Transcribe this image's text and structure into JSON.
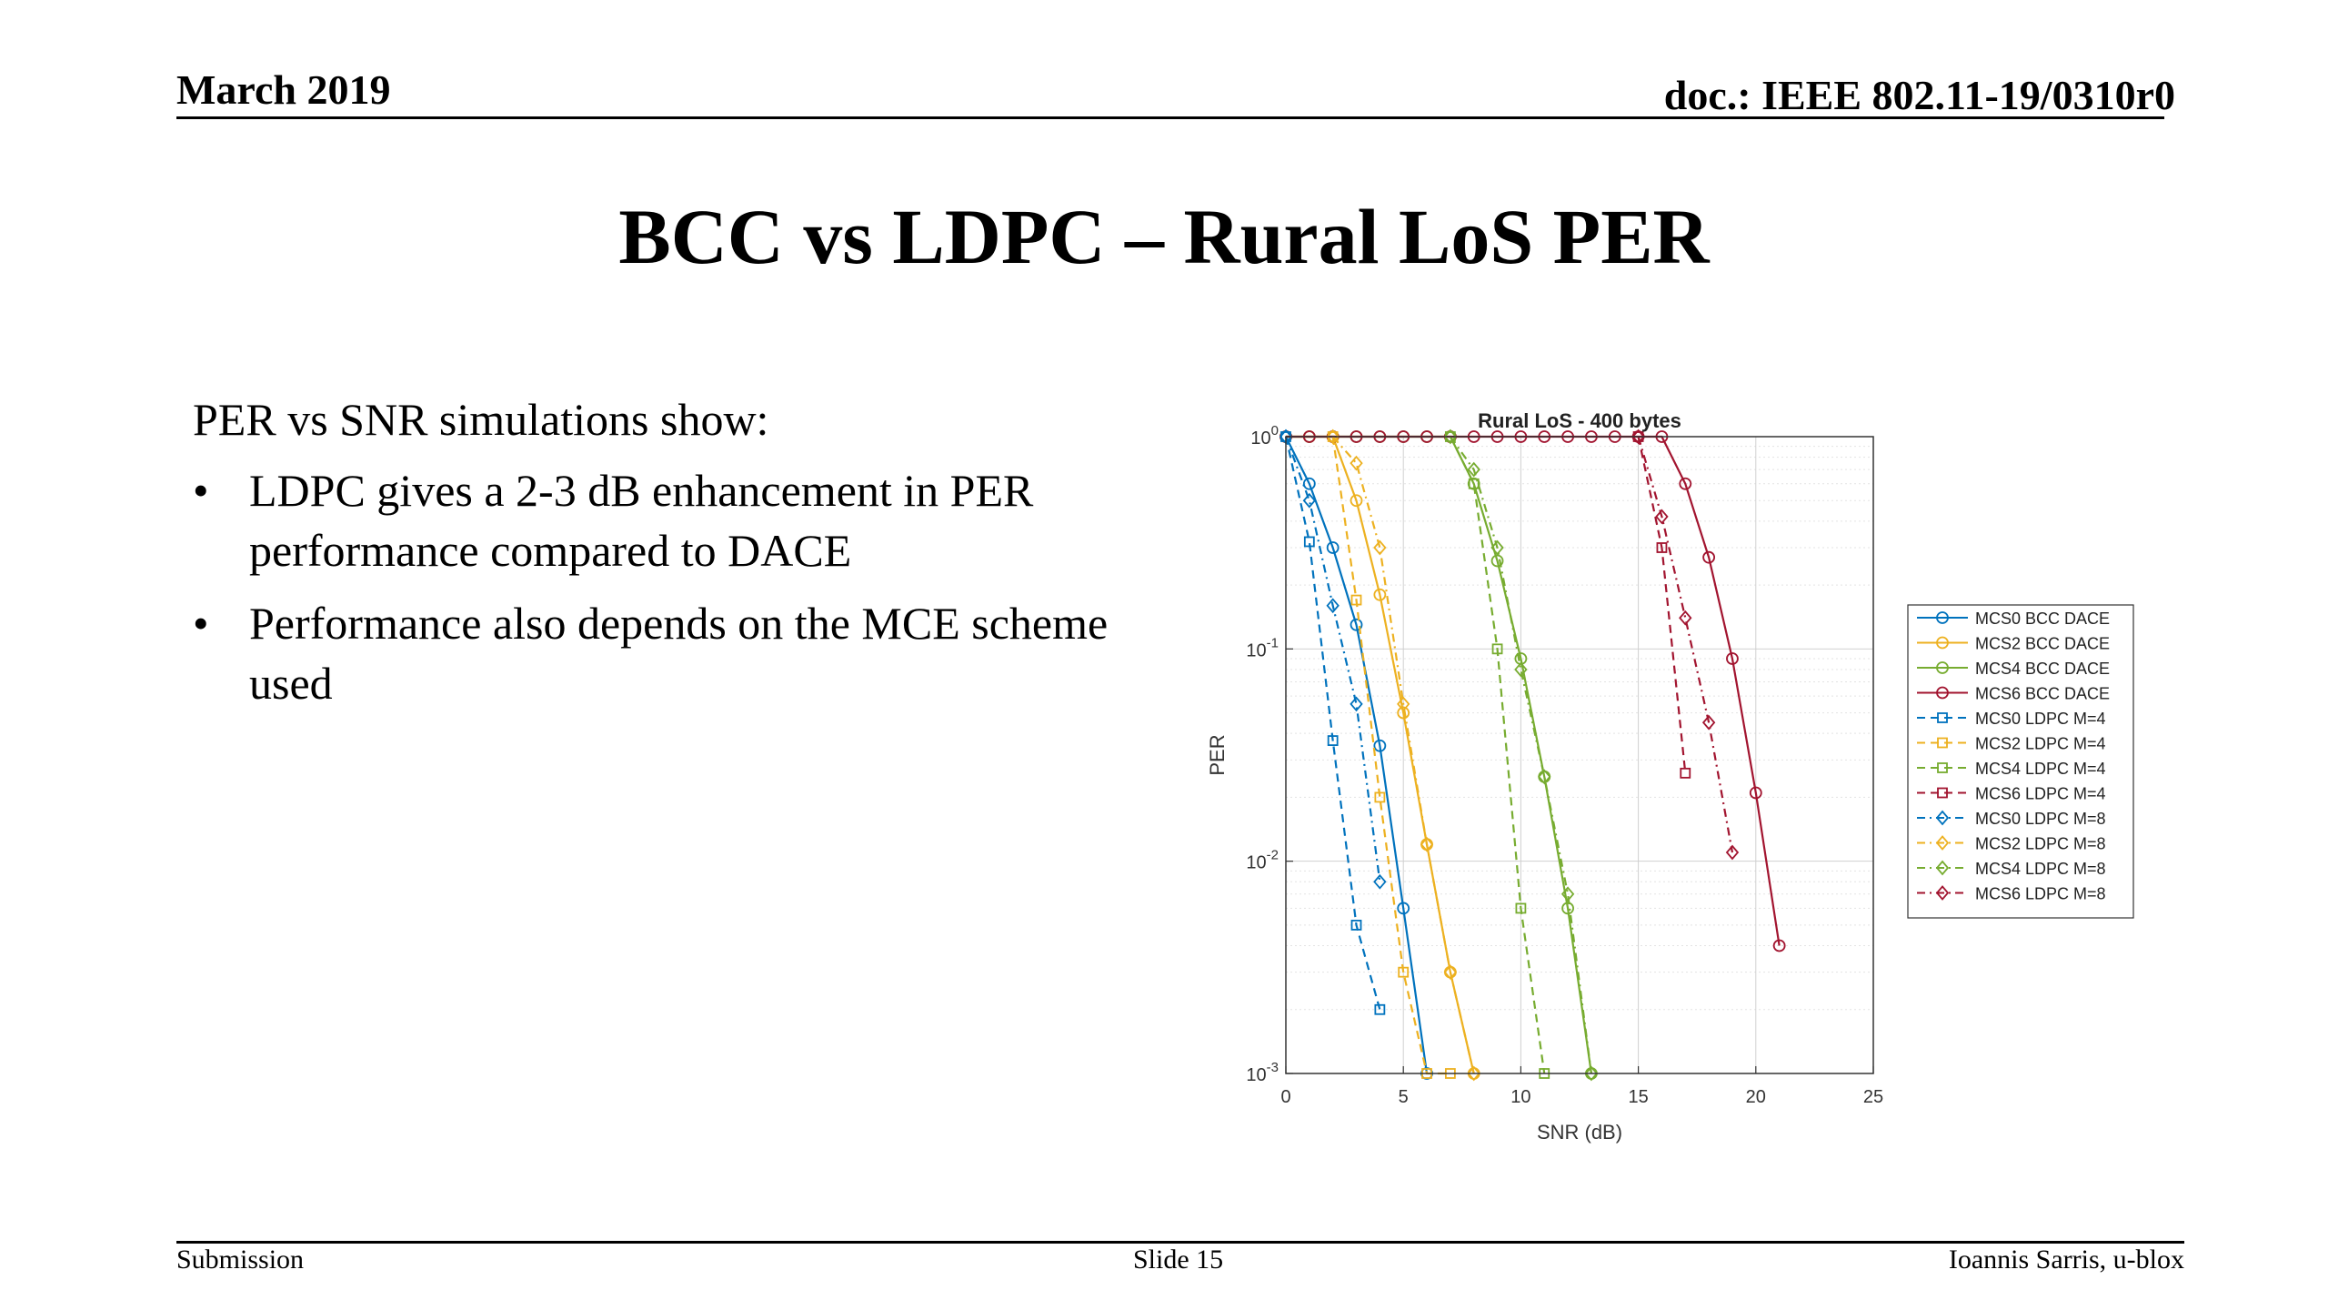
{
  "header": {
    "date": "March 2019",
    "doc": "doc.: IEEE 802.11-19/0310r0"
  },
  "slide_title": "BCC vs LDPC – Rural LoS PER",
  "content": {
    "intro": "PER vs SNR simulations show:",
    "bullets": [
      "LDPC gives a 2-3 dB enhancement in PER performance compared to DACE",
      "Performance also depends on the MCE scheme used"
    ]
  },
  "footer": {
    "left": "Submission",
    "center": "Slide 15",
    "right": "Ioannis Sarris, u-blox"
  },
  "chart_data": {
    "type": "line",
    "title": "Rural LoS - 400 bytes",
    "xlabel": "SNR (dB)",
    "ylabel": "PER",
    "xlim": [
      0,
      25
    ],
    "ylim": [
      0.001,
      1
    ],
    "yscale": "log",
    "xticks": [
      "0",
      "5",
      "10",
      "15",
      "20",
      "25"
    ],
    "yticks": [
      "10^0",
      "10^-1",
      "10^-2",
      "10^-3"
    ],
    "grid": true,
    "legend_position": "right",
    "series": [
      {
        "name": "MCS0 BCC DACE",
        "color": "#0072BD",
        "style": "solid",
        "marker": "circle",
        "x": [
          0,
          1,
          2,
          3,
          4,
          5,
          6
        ],
        "y": [
          1,
          0.6,
          0.3,
          0.13,
          0.035,
          0.006,
          0.001
        ]
      },
      {
        "name": "MCS2 BCC DACE",
        "color": "#EDB120",
        "style": "solid",
        "marker": "circle",
        "x": [
          0,
          1,
          2,
          3,
          4,
          5,
          6,
          7,
          8
        ],
        "y": [
          1,
          1,
          1,
          0.5,
          0.18,
          0.05,
          0.012,
          0.003,
          0.001
        ]
      },
      {
        "name": "MCS4 BCC DACE",
        "color": "#77AC30",
        "style": "solid",
        "marker": "circle",
        "x": [
          0,
          1,
          2,
          3,
          4,
          5,
          6,
          7,
          8,
          9,
          10,
          11,
          12,
          13
        ],
        "y": [
          1,
          1,
          1,
          1,
          1,
          1,
          1,
          1,
          0.6,
          0.26,
          0.09,
          0.025,
          0.006,
          0.001
        ]
      },
      {
        "name": "MCS6 BCC DACE",
        "color": "#A2142F",
        "style": "solid",
        "marker": "circle",
        "x": [
          0,
          1,
          2,
          3,
          4,
          5,
          6,
          7,
          8,
          9,
          10,
          11,
          12,
          13,
          14,
          15,
          16,
          17,
          18,
          19,
          20,
          21
        ],
        "y": [
          1,
          1,
          1,
          1,
          1,
          1,
          1,
          1,
          1,
          1,
          1,
          1,
          1,
          1,
          1,
          1,
          1,
          0.6,
          0.27,
          0.09,
          0.021,
          0.004
        ]
      },
      {
        "name": "MCS0 LDPC M=4",
        "color": "#0072BD",
        "style": "dashed",
        "marker": "square",
        "x": [
          0,
          1,
          2,
          3,
          4
        ],
        "y": [
          1,
          0.32,
          0.037,
          0.005,
          0.002
        ]
      },
      {
        "name": "MCS2 LDPC M=4",
        "color": "#EDB120",
        "style": "dashed",
        "marker": "square",
        "x": [
          2,
          3,
          4,
          5,
          6,
          7
        ],
        "y": [
          1,
          0.17,
          0.02,
          0.003,
          0.001,
          0.001
        ]
      },
      {
        "name": "MCS4 LDPC M=4",
        "color": "#77AC30",
        "style": "dashed",
        "marker": "square",
        "x": [
          7,
          8,
          9,
          10,
          11
        ],
        "y": [
          1,
          0.6,
          0.1,
          0.006,
          0.001
        ]
      },
      {
        "name": "MCS6 LDPC M=4",
        "color": "#A2142F",
        "style": "dashed",
        "marker": "square",
        "x": [
          15,
          16,
          17
        ],
        "y": [
          1,
          0.3,
          0.026
        ]
      },
      {
        "name": "MCS0 LDPC M=8",
        "color": "#0072BD",
        "style": "dashdot",
        "marker": "diamond",
        "x": [
          0,
          1,
          2,
          3,
          4
        ],
        "y": [
          1,
          0.5,
          0.16,
          0.055,
          0.008
        ]
      },
      {
        "name": "MCS2 LDPC M=8",
        "color": "#EDB120",
        "style": "dashdot",
        "marker": "diamond",
        "x": [
          2,
          3,
          4,
          5,
          6,
          7,
          8
        ],
        "y": [
          1,
          0.75,
          0.3,
          0.055,
          0.012,
          0.003,
          0.001
        ]
      },
      {
        "name": "MCS4 LDPC M=8",
        "color": "#77AC30",
        "style": "dashdot",
        "marker": "diamond",
        "x": [
          7,
          8,
          9,
          10,
          11,
          12,
          13
        ],
        "y": [
          1,
          0.7,
          0.3,
          0.08,
          0.025,
          0.007,
          0.001
        ]
      },
      {
        "name": "MCS6 LDPC M=8",
        "color": "#A2142F",
        "style": "dashdot",
        "marker": "diamond",
        "x": [
          15,
          16,
          17,
          18,
          19
        ],
        "y": [
          1,
          0.42,
          0.14,
          0.045,
          0.011
        ]
      }
    ]
  }
}
